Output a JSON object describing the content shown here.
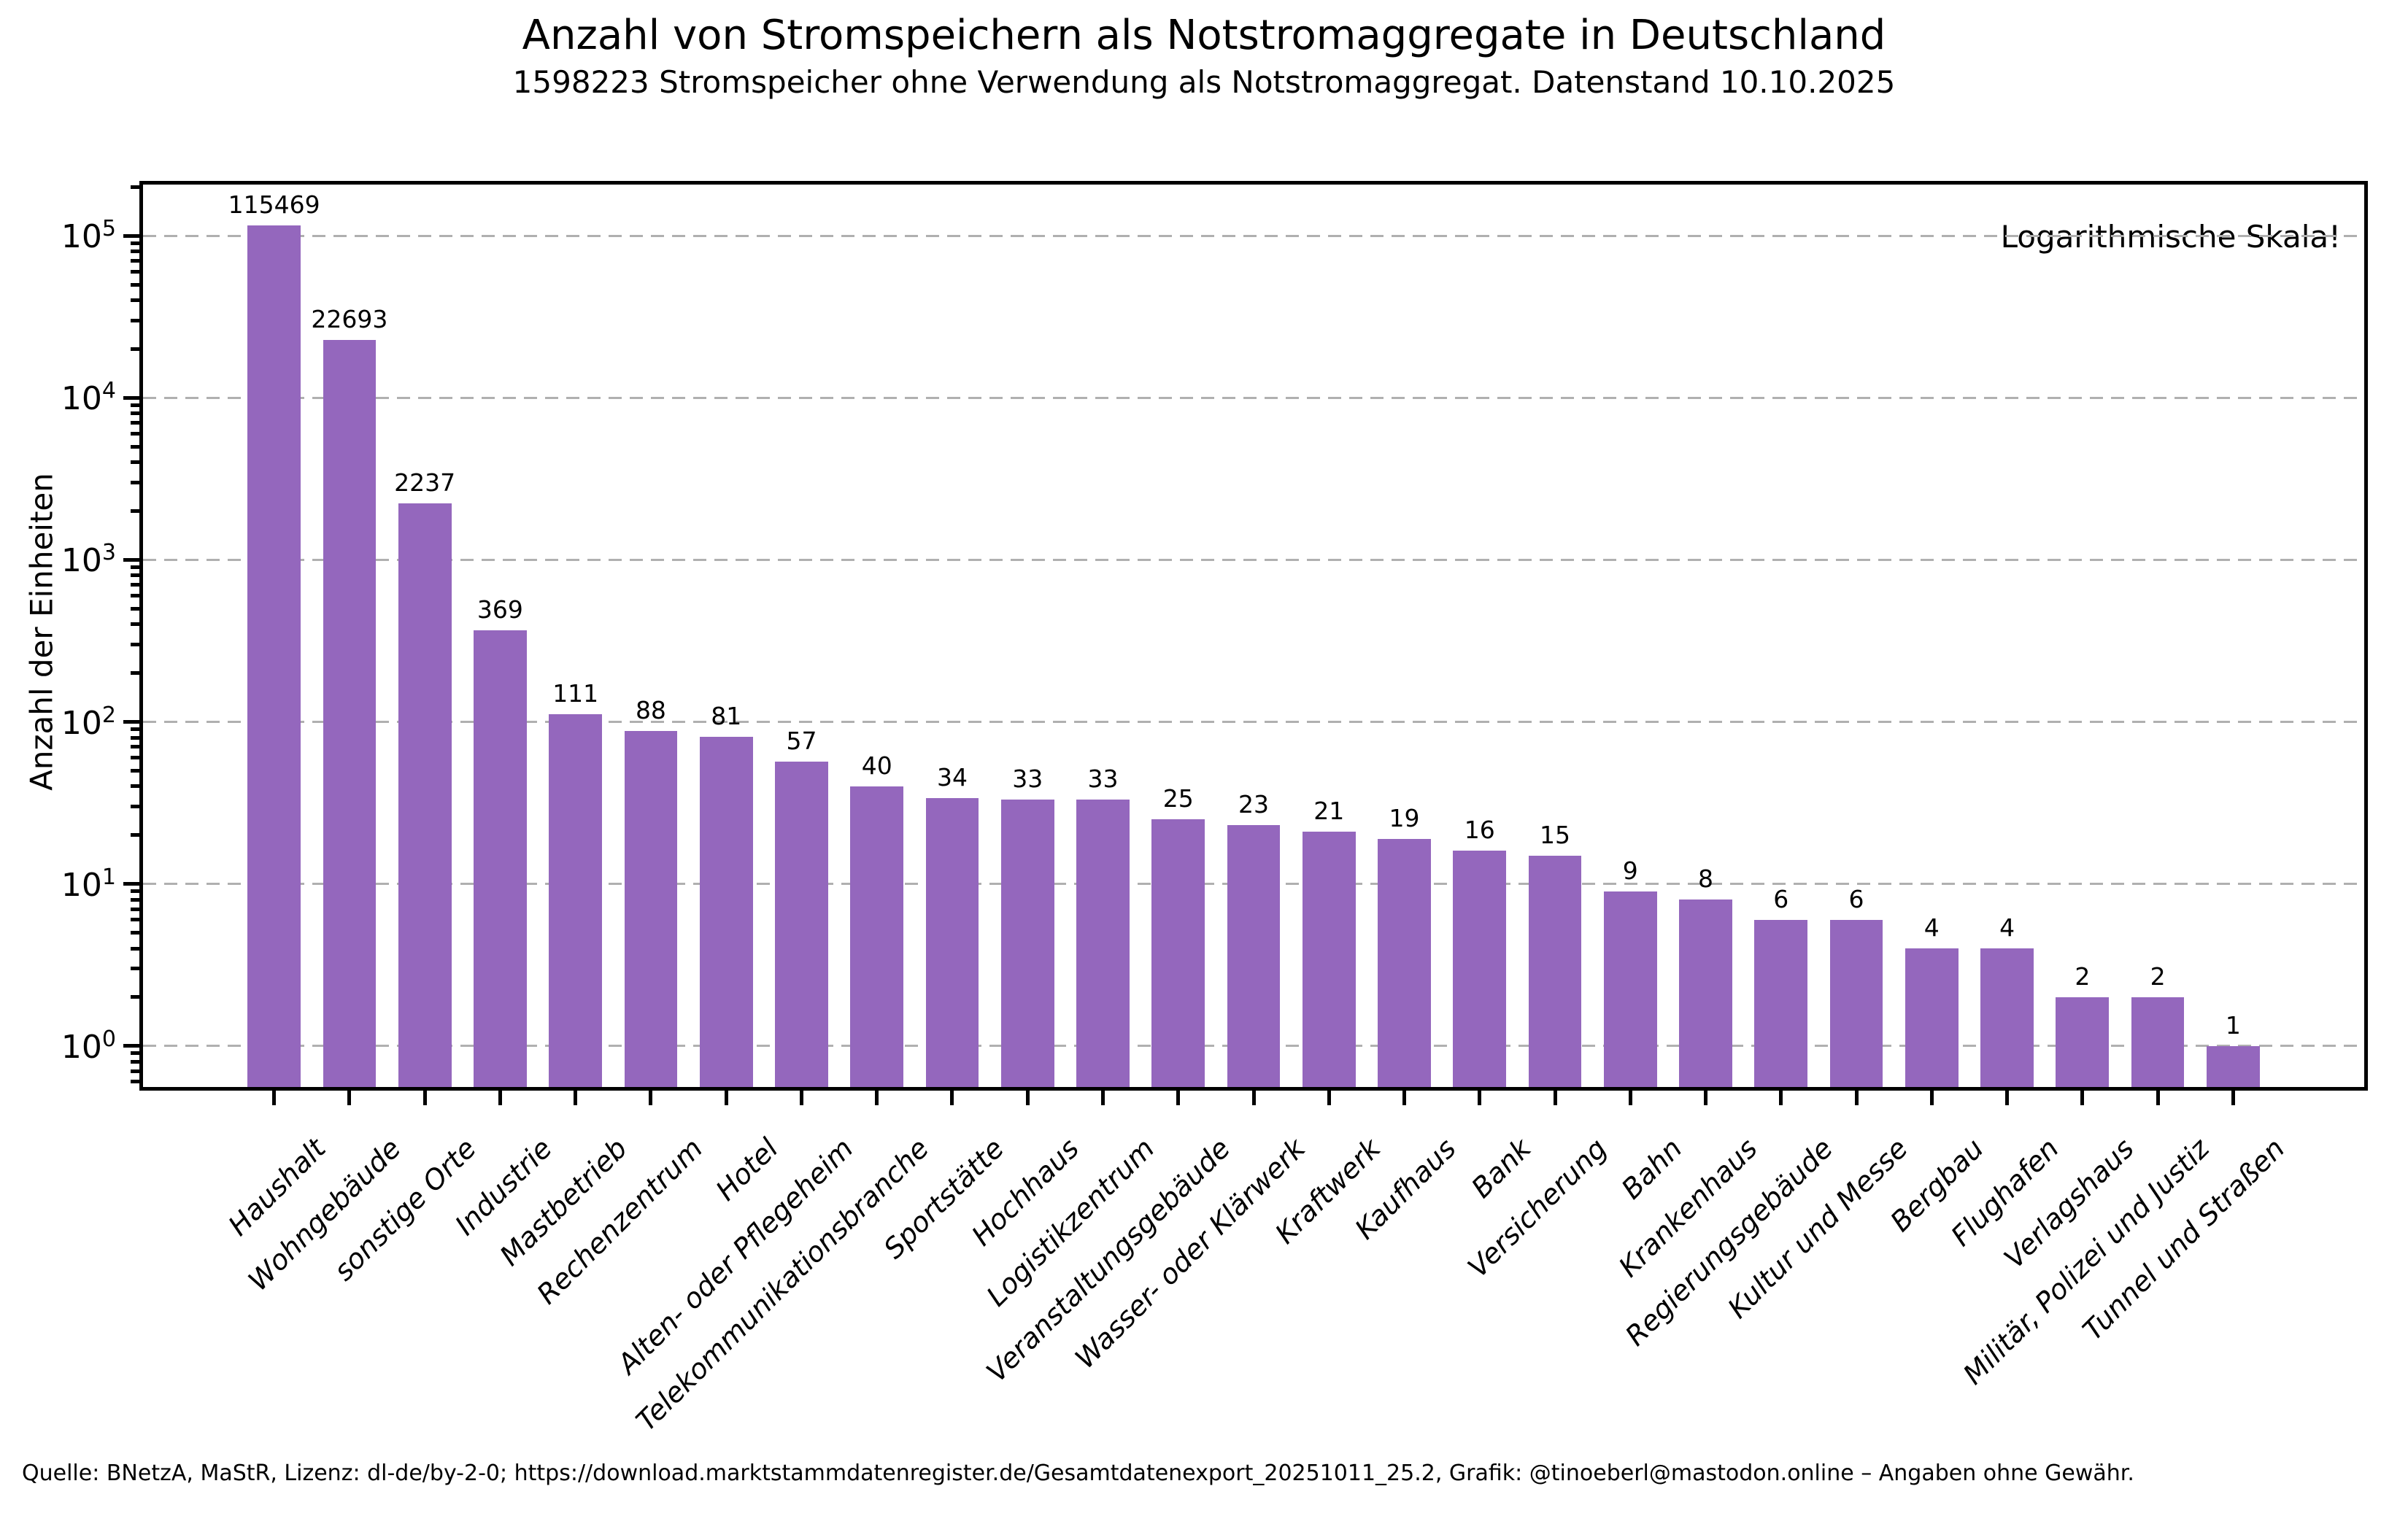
{
  "chart_data": {
    "type": "bar",
    "title": "Anzahl von Stromspeichern als Notstromaggregate in Deutschland",
    "subtitle": "1598223 Stromspeicher ohne Verwendung als Notstromaggregat. Datenstand 10.10.2025",
    "ylabel": "Anzahl der Einheiten",
    "annotation": "Logarithmische Skala!",
    "categories": [
      "Haushalt",
      "Wohngebäude",
      "sonstige Orte",
      "Industrie",
      "Mastbetrieb",
      "Rechenzentrum",
      "Hotel",
      "Alten- oder Pflegeheim",
      "Telekommunikationsbranche",
      "Sportstätte",
      "Hochhaus",
      "Logistikzentrum",
      "Veranstaltungsgebäude",
      "Wasser- oder Klärwerk",
      "Kraftwerk",
      "Kaufhaus",
      "Bank",
      "Versicherung",
      "Bahn",
      "Krankenhaus",
      "Regierungsgebäude",
      "Kultur und Messe",
      "Bergbau",
      "Flughafen",
      "Verlagshaus",
      "Militär, Polizei und Justiz",
      "Tunnel und Straßen"
    ],
    "values": [
      115469,
      22693,
      2237,
      369,
      111,
      88,
      81,
      57,
      40,
      34,
      33,
      33,
      25,
      23,
      21,
      19,
      16,
      15,
      9,
      8,
      6,
      6,
      4,
      4,
      2,
      2,
      1
    ],
    "bar_color": "#9467bd",
    "log_scale": true,
    "grid": "dashed horizontal",
    "ytick_exponents": [
      0,
      1,
      2,
      3,
      4,
      5
    ],
    "ylim": [
      0.558,
      207000
    ],
    "xlim_slots": [
      -1.74,
      27.74
    ],
    "bar_width_slots": 0.705
  },
  "footer": "Quelle: BNetzA, MaStR, Lizenz: dl-de/by-2-0; https://download.marktstammdatenregister.de/Gesamtdatenexport_20251011_25.2, Grafik: @tinoeberl@mastodon.online – Angaben ohne Gewähr."
}
